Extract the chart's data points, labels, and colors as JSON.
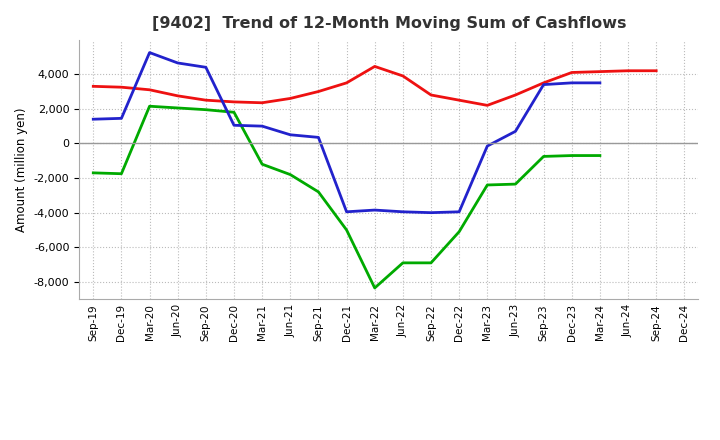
{
  "title": "[9402]  Trend of 12-Month Moving Sum of Cashflows",
  "ylabel": "Amount (million yen)",
  "x_labels": [
    "Sep-19",
    "Dec-19",
    "Mar-20",
    "Jun-20",
    "Sep-20",
    "Dec-20",
    "Mar-21",
    "Jun-21",
    "Sep-21",
    "Dec-21",
    "Mar-22",
    "Jun-22",
    "Sep-22",
    "Dec-22",
    "Mar-23",
    "Jun-23",
    "Sep-23",
    "Dec-23",
    "Mar-24",
    "Jun-24",
    "Sep-24",
    "Dec-24"
  ],
  "operating": [
    3300,
    3250,
    3100,
    2750,
    2500,
    2400,
    2350,
    2600,
    3000,
    3500,
    4450,
    3900,
    2800,
    2500,
    2200,
    2800,
    3500,
    4100,
    4150,
    4200,
    4200,
    null
  ],
  "investing": [
    -1700,
    -1750,
    2150,
    2050,
    1950,
    1800,
    -1200,
    -1800,
    -2800,
    -5000,
    -8350,
    -6900,
    -6900,
    -5100,
    -2400,
    -2350,
    -750,
    -700,
    -700,
    null,
    null,
    null
  ],
  "free": [
    1400,
    1450,
    5250,
    4650,
    4400,
    1050,
    1000,
    500,
    350,
    -3950,
    -3850,
    -3950,
    -4000,
    -3950,
    -150,
    700,
    3400,
    3500,
    3500,
    null,
    null,
    null
  ],
  "operating_color": "#EE1111",
  "investing_color": "#00AA00",
  "free_color": "#2222CC",
  "ylim": [
    -9000,
    6000
  ],
  "yticks": [
    -8000,
    -6000,
    -4000,
    -2000,
    0,
    2000,
    4000
  ],
  "grid_color": "#bbbbbb",
  "bg_color": "#ffffff",
  "title_color": "#333333"
}
